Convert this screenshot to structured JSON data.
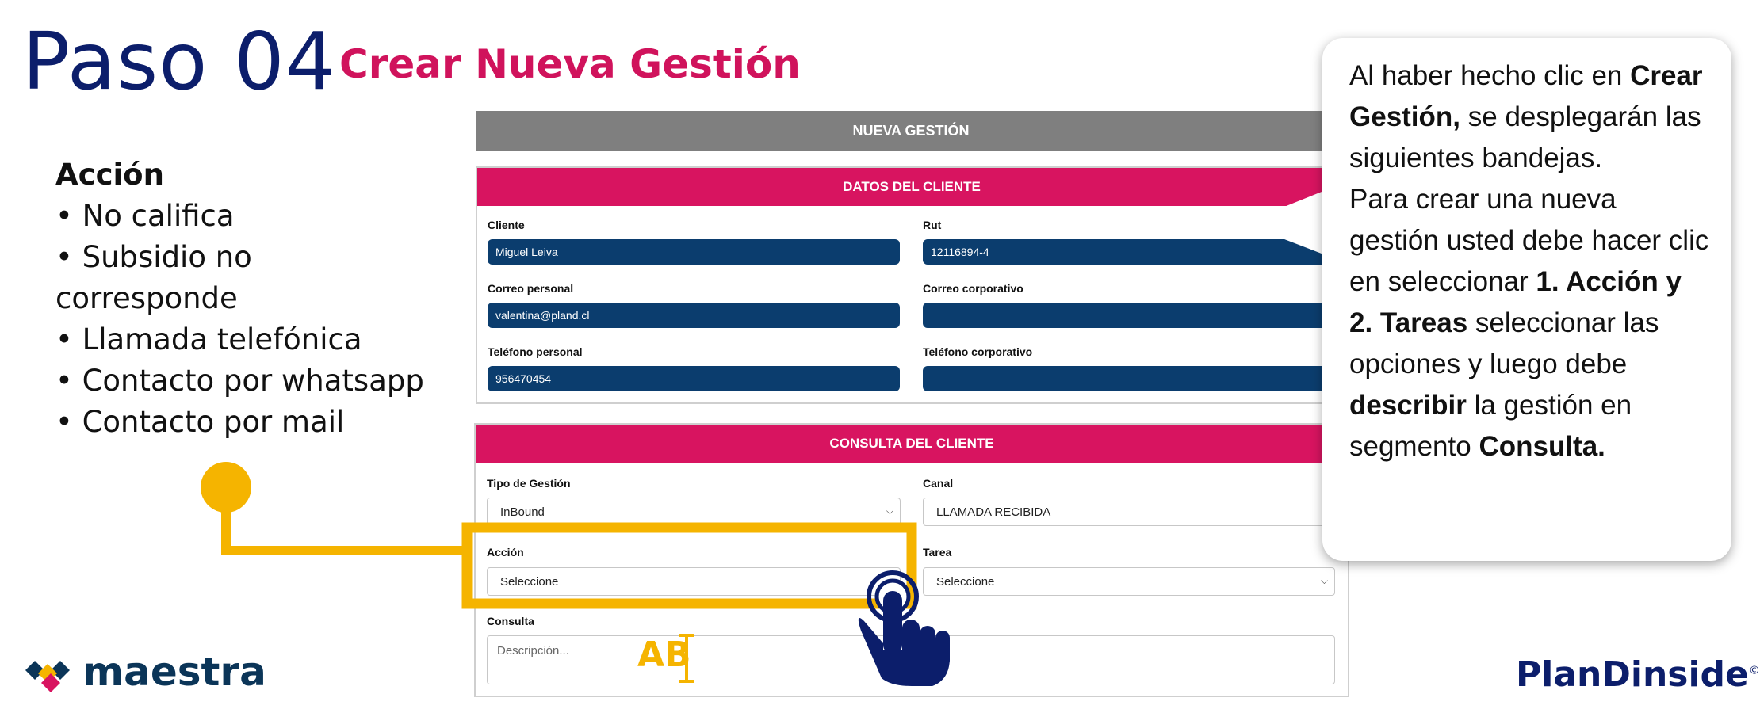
{
  "header": {
    "step": "Paso 04",
    "subtitle": "Crear Nueva Gestión"
  },
  "left_list": {
    "heading": "Acción",
    "items": [
      "• No califica",
      "• Subsidio no",
      "corresponde",
      "• Llamada telefónica",
      "• Contacto por whatsapp",
      "• Contacto por mail"
    ]
  },
  "form": {
    "title": "NUEVA GESTIÓN",
    "client_section": {
      "title": "DATOS DEL CLIENTE",
      "cliente_label": "Cliente",
      "cliente_value": "Miguel Leiva",
      "rut_label": "Rut",
      "rut_value": "12116894-4",
      "correo_personal_label": "Correo personal",
      "correo_personal_value": "valentina@pland.cl",
      "correo_corporativo_label": "Correo corporativo",
      "correo_corporativo_value": "",
      "telefono_personal_label": "Teléfono personal",
      "telefono_personal_value": "956470454",
      "telefono_corporativo_label": "Teléfono corporativo",
      "telefono_corporativo_value": ""
    },
    "consulta_section": {
      "title": "CONSULTA DEL CLIENTE",
      "tipo_label": "Tipo de Gestión",
      "tipo_value": "InBound",
      "canal_label": "Canal",
      "canal_value": "LLAMADA RECIBIDA",
      "accion_label": "Acción",
      "accion_value": "Seleccione",
      "tarea_label": "Tarea",
      "tarea_value": "Seleccione",
      "consulta_label": "Consulta",
      "consulta_placeholder": "Descripción..."
    }
  },
  "annotation": {
    "text_cursor_label": "AB"
  },
  "callout": {
    "t1": "Al haber hecho clic en ",
    "t2": "Crear Gestión,",
    "t3": " se desplegarán las siguientes bandejas.",
    "t4": "Para crear una nueva gestión usted debe hacer clic en seleccionar ",
    "t5": "1. Acción y 2. Tareas",
    "t6": " seleccionar las opciones y luego debe ",
    "t7": "describir",
    "t8": " la gestión en segmento ",
    "t9": "Consulta."
  },
  "footer": {
    "left_logo": "maestra",
    "right_logo": "PlanDinside",
    "right_logo_mark": "©"
  },
  "colors": {
    "navy": "#0c1e6b",
    "pink": "#d81460",
    "accent_yellow": "#f5b400",
    "input_dark": "#0b3d6e",
    "gray_bar": "#7f7f7f"
  }
}
